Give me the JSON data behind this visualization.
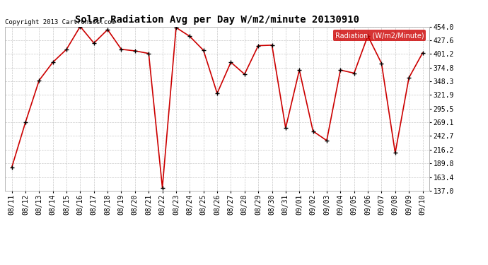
{
  "title": "Solar Radiation Avg per Day W/m2/minute 20130910",
  "copyright": "Copyright 2013 Cartronics.com",
  "legend_label": "Radiation  (W/m2/Minute)",
  "x_labels": [
    "08/11",
    "08/12",
    "08/13",
    "08/14",
    "08/15",
    "08/16",
    "08/17",
    "08/18",
    "08/19",
    "08/20",
    "08/21",
    "08/22",
    "08/23",
    "08/24",
    "08/25",
    "08/26",
    "08/27",
    "08/28",
    "08/29",
    "08/30",
    "08/31",
    "09/01",
    "09/02",
    "09/03",
    "09/04",
    "09/05",
    "09/06",
    "09/07",
    "09/08",
    "09/09",
    "09/10"
  ],
  "y_values": [
    182,
    269,
    350,
    385,
    410,
    454,
    422,
    448,
    410,
    407,
    402,
    143,
    452,
    435,
    408,
    325,
    385,
    362,
    417,
    418,
    258,
    370,
    252,
    234,
    370,
    364,
    436,
    383,
    210,
    355,
    403
  ],
  "y_ticks": [
    137.0,
    163.4,
    189.8,
    216.2,
    242.7,
    269.1,
    295.5,
    321.9,
    348.3,
    374.8,
    401.2,
    427.6,
    454.0
  ],
  "y_min": 137.0,
  "y_max": 454.0,
  "line_color": "#cc0000",
  "marker_color": "#000000",
  "background_color": "#ffffff",
  "plot_bg_color": "#ffffff",
  "grid_color": "#c8c8c8",
  "title_fontsize": 10,
  "copyright_fontsize": 6.5,
  "tick_fontsize": 7,
  "legend_bg": "#cc0000",
  "legend_text_color": "#ffffff",
  "legend_fontsize": 7
}
